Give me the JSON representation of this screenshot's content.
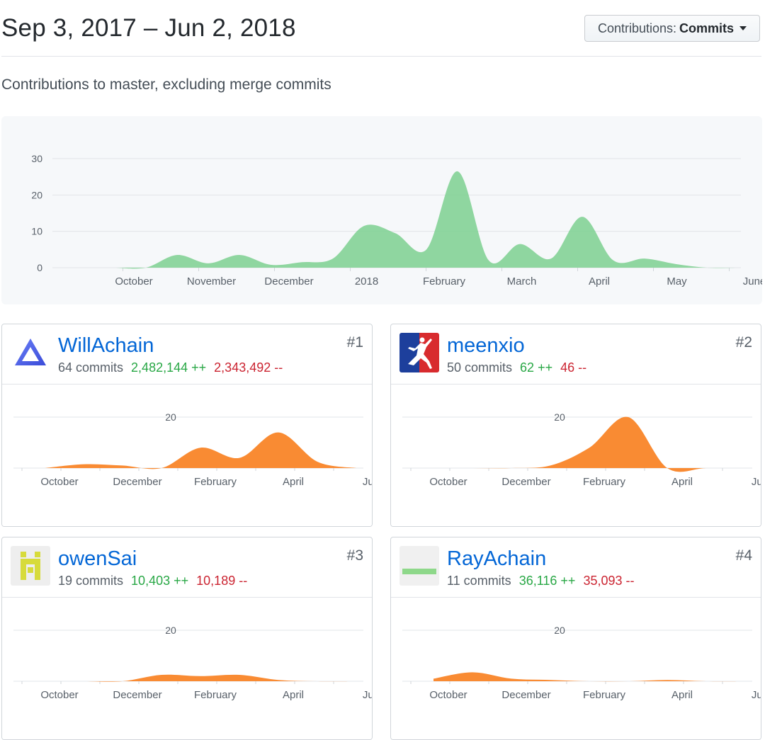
{
  "header": {
    "date_range": "Sep 3, 2017 – Jun 2, 2018",
    "dropdown_prefix": "Contributions:",
    "dropdown_value": "Commits",
    "subtitle": "Contributions to master, excluding merge commits"
  },
  "chart_data": [
    {
      "type": "area",
      "color": "#7dd08f",
      "x_labels": [
        "October",
        "November",
        "December",
        "2018",
        "February",
        "March",
        "April",
        "May",
        "June"
      ],
      "y_ticks": [
        0,
        10,
        20,
        30
      ],
      "ylim": [
        0,
        30
      ],
      "grid": true,
      "x": [
        "Oct 1",
        "Oct 15",
        "Nov 1",
        "Nov 15",
        "Dec 1",
        "Dec 15",
        "Jan 1",
        "Jan 15",
        "Jan 22",
        "Feb 1",
        "Feb 15",
        "Feb 22",
        "Mar 1",
        "Mar 15",
        "Mar 22",
        "Apr 1",
        "Apr 15",
        "Apr 22",
        "May 1",
        "May 15",
        "Jun 1"
      ],
      "values": [
        0,
        0,
        3.5,
        1.2,
        3.5,
        0.8,
        1.5,
        2.5,
        11.5,
        9.5,
        5,
        26.5,
        2,
        6.5,
        2.5,
        14,
        2,
        2.5,
        1,
        0,
        0
      ]
    }
  ],
  "contributors": [
    {
      "rank": "#1",
      "name": "WillAchain",
      "commits": "64 commits",
      "additions": "2,482,144 ++",
      "deletions": "2,343,492 --",
      "avatar_icon": "blue-triangle-logo-icon",
      "chart": {
        "type": "area",
        "color": "#f98b33",
        "x_labels": [
          "October",
          "December",
          "February",
          "April",
          "Jun"
        ],
        "y_tick": "20",
        "x": [
          "Oct",
          "Nov",
          "Dec",
          "Jan",
          "Feb",
          "Mar",
          "Apr",
          "May",
          "Jun"
        ],
        "values": [
          0,
          1.5,
          1,
          0,
          8,
          4,
          14,
          2.5,
          0
        ]
      }
    },
    {
      "rank": "#2",
      "name": "meenxio",
      "commits": "50 commits",
      "additions": "62 ++",
      "deletions": "46 --",
      "avatar_icon": "jumpman-logo-icon",
      "chart": {
        "type": "area",
        "color": "#f98b33",
        "x_labels": [
          "October",
          "December",
          "February",
          "April",
          "Jun"
        ],
        "y_tick": "20",
        "x": [
          "Oct",
          "Nov",
          "Dec",
          "Jan",
          "Feb",
          "Mar",
          "Apr",
          "May",
          "Jun"
        ],
        "values": [
          0,
          0,
          0,
          1,
          8,
          20,
          0,
          0,
          0
        ]
      }
    },
    {
      "rank": "#3",
      "name": "owenSai",
      "commits": "19 commits",
      "additions": "10,403 ++",
      "deletions": "10,189 --",
      "avatar_icon": "yellow-pixel-avatar-icon",
      "chart": {
        "type": "area",
        "color": "#f98b33",
        "x_labels": [
          "October",
          "December",
          "February",
          "April",
          "Jun"
        ],
        "y_tick": "20",
        "x": [
          "Oct",
          "Nov",
          "Dec",
          "Jan",
          "Feb",
          "Mar",
          "Apr",
          "May",
          "Jun"
        ],
        "values": [
          0,
          0,
          0,
          2.5,
          2,
          2.5,
          0.5,
          0,
          0
        ]
      }
    },
    {
      "rank": "#4",
      "name": "RayAchain",
      "commits": "11 commits",
      "additions": "36,116 ++",
      "deletions": "35,093 --",
      "avatar_icon": "green-bar-avatar-icon",
      "chart": {
        "type": "area",
        "color": "#f98b33",
        "x_labels": [
          "October",
          "December",
          "February",
          "April",
          "Jun"
        ],
        "y_tick": "20",
        "x": [
          "Oct",
          "Nov",
          "Dec",
          "Jan",
          "Feb",
          "Mar",
          "Apr",
          "May",
          "Jun"
        ],
        "values": [
          1,
          3.5,
          1,
          0.5,
          0,
          0,
          0.5,
          0,
          0
        ]
      }
    }
  ]
}
